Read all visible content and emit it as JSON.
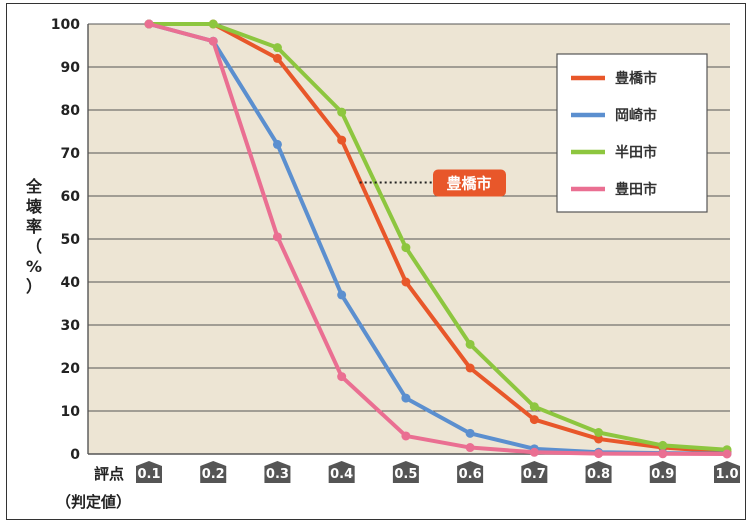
{
  "chart_data": {
    "type": "line",
    "title": "",
    "xlabel": "評点",
    "xlabel_note": "（判定値）",
    "ylabel_chars": [
      "全",
      "壊",
      "率",
      "（",
      "%",
      "）"
    ],
    "x": [
      0.1,
      0.2,
      0.3,
      0.4,
      0.5,
      0.6,
      0.7,
      0.8,
      0.9,
      1.0
    ],
    "x_tick_labels": [
      "0.1",
      "0.2",
      "0.3",
      "0.4",
      "0.5",
      "0.6",
      "0.7",
      "0.8",
      "0.9",
      "1.0"
    ],
    "ylim": [
      0,
      100
    ],
    "y_ticks": [
      0,
      10,
      20,
      30,
      40,
      50,
      60,
      70,
      80,
      90,
      100
    ],
    "grid": true,
    "legend_position": "top-right",
    "series": [
      {
        "name": "豊橋市",
        "color": "#e8572a",
        "values": [
          100,
          100,
          92,
          73,
          40,
          20,
          8,
          3.5,
          1.5,
          0.5
        ]
      },
      {
        "name": "岡崎市",
        "color": "#5b8fcf",
        "values": [
          100,
          96,
          72,
          37,
          13,
          4.8,
          1.2,
          0.4,
          0.2,
          0.1
        ]
      },
      {
        "name": "半田市",
        "color": "#8dc63f",
        "values": [
          100,
          100,
          94.5,
          79.5,
          48,
          25.5,
          11,
          5,
          2,
          1
        ]
      },
      {
        "name": "豊田市",
        "color": "#ea6f92",
        "values": [
          100,
          96,
          50.5,
          18,
          4.2,
          1.5,
          0.4,
          0.1,
          0.05,
          0
        ]
      }
    ],
    "annotation": {
      "text": "豊橋市",
      "color": "#e8572a",
      "x": 0.4,
      "y": 65
    }
  }
}
